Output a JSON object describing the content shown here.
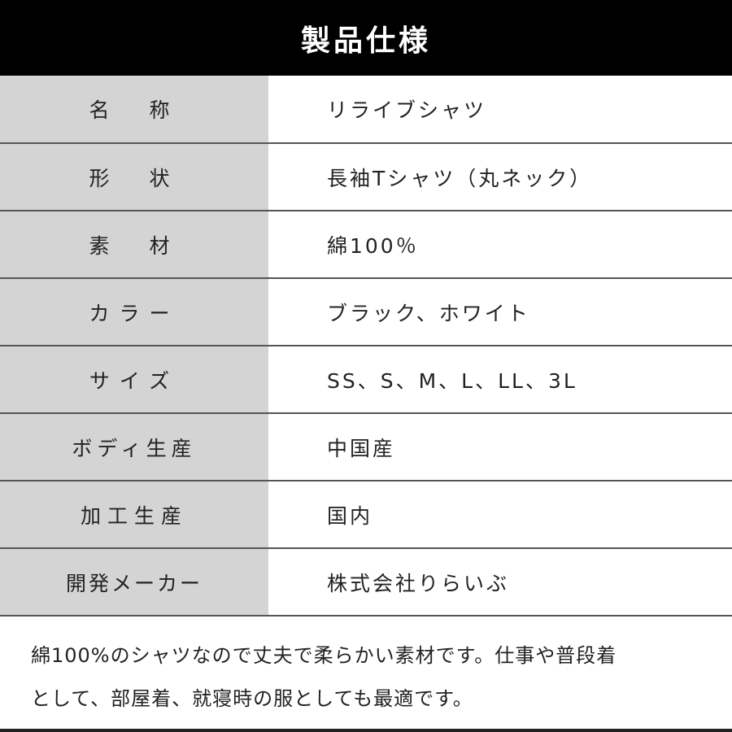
{
  "header": {
    "title": "製品仕様"
  },
  "rows": [
    {
      "label": "名　称",
      "value": "リライブシャツ"
    },
    {
      "label": "形　状",
      "value": "長袖Tシャツ（丸ネック）"
    },
    {
      "label": "素　材",
      "value": "綿100％"
    },
    {
      "label": "カラー",
      "value": "ブラック、ホワイト"
    },
    {
      "label": "サイズ",
      "value": "SS、S、M、L、LL、3L"
    },
    {
      "label": "ボディ生産",
      "value": "中国産"
    },
    {
      "label": "加工生産",
      "value": "国内"
    },
    {
      "label": "開発メーカー",
      "value": "株式会社りらいぶ"
    }
  ],
  "note": {
    "line1": "綿100%のシャツなので丈夫で柔らかい素材です。仕事や普段着",
    "line2": "として、部屋着、就寝時の服としても最適です。"
  }
}
